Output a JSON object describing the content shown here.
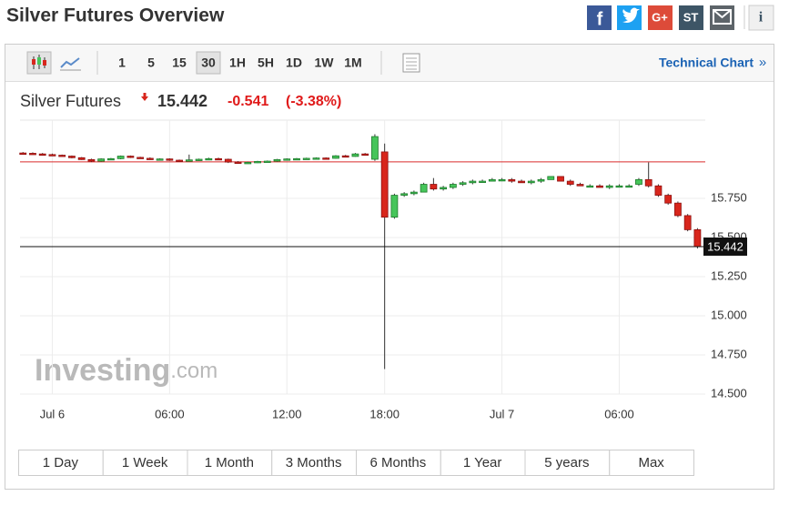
{
  "header": {
    "title": "Silver Futures Overview",
    "share_labels": [
      "f",
      "G+",
      "ST",
      "i"
    ]
  },
  "toolbar": {
    "intervals": [
      "1",
      "5",
      "15",
      "30",
      "1H",
      "5H",
      "1D",
      "1W",
      "1M"
    ],
    "active_interval": 3,
    "link": "Technical Chart",
    "link_arrow": "»"
  },
  "quote": {
    "name": "Silver Futures",
    "price": "15.442",
    "change": "-0.541",
    "change_pct": "(-3.38%)"
  },
  "watermark": {
    "brand": "Investing",
    "suffix": ".com"
  },
  "ranges": [
    "1 Day",
    "1 Week",
    "1 Month",
    "3 Months",
    "6 Months",
    "1 Year",
    "5 years",
    "Max"
  ],
  "chart_data": {
    "type": "candlestick",
    "x": [
      0,
      1,
      2,
      3,
      4,
      5,
      6,
      7,
      8,
      9,
      10,
      11,
      12,
      13,
      14,
      15,
      16,
      17,
      18,
      19,
      20,
      21,
      22,
      23,
      24,
      25,
      26,
      27,
      28,
      29,
      30,
      31,
      32,
      33,
      34,
      35,
      36,
      37,
      38,
      39,
      40,
      41,
      42,
      43,
      44,
      45,
      46,
      47,
      48,
      49,
      50,
      51,
      52,
      53,
      54,
      55,
      56,
      57,
      58,
      59,
      60,
      61,
      62,
      63,
      64,
      65,
      66,
      67,
      68,
      69
    ],
    "open": [
      16.04,
      16.038,
      16.034,
      16.03,
      16.026,
      16.02,
      16.01,
      15.998,
      15.988,
      16.002,
      16.004,
      16.02,
      16.012,
      16.006,
      16.0,
      16.002,
      15.994,
      15.99,
      15.996,
      16.0,
      16.004,
      16.0,
      15.982,
      15.978,
      15.98,
      15.986,
      15.988,
      15.998,
      16.002,
      16.004,
      16.006,
      16.008,
      16.006,
      16.022,
      16.018,
      16.034,
      16.0,
      16.047,
      15.63,
      15.77,
      15.78,
      15.79,
      15.84,
      15.81,
      15.82,
      15.84,
      15.85,
      15.86,
      15.86,
      15.87,
      15.87,
      15.86,
      15.85,
      15.86,
      15.87,
      15.89,
      15.86,
      15.84,
      15.83,
      15.83,
      15.82,
      15.83,
      15.83,
      15.84,
      15.87,
      15.83,
      15.77,
      15.72,
      15.64,
      15.55
    ],
    "high": [
      16.046,
      16.044,
      16.04,
      16.036,
      16.03,
      16.024,
      16.014,
      16.004,
      16.006,
      16.008,
      16.024,
      16.024,
      16.016,
      16.012,
      16.006,
      16.006,
      15.998,
      16.03,
      16.004,
      16.01,
      16.01,
      16.004,
      15.988,
      15.984,
      15.99,
      15.992,
      16.002,
      16.006,
      16.008,
      16.01,
      16.012,
      16.012,
      16.026,
      16.028,
      16.04,
      16.04,
      16.16,
      16.1,
      15.78,
      15.79,
      15.8,
      15.85,
      15.88,
      15.83,
      15.85,
      15.86,
      15.87,
      15.87,
      15.88,
      15.88,
      15.88,
      15.87,
      15.87,
      15.88,
      15.89,
      15.89,
      15.87,
      15.85,
      15.84,
      15.84,
      15.84,
      15.84,
      15.84,
      15.88,
      15.98,
      15.84,
      15.78,
      15.73,
      15.65,
      15.56
    ],
    "low": [
      16.034,
      16.03,
      16.028,
      16.024,
      16.018,
      16.006,
      15.996,
      15.982,
      15.984,
      15.996,
      16.0,
      16.008,
      16.004,
      15.996,
      15.994,
      15.99,
      15.986,
      15.986,
      15.99,
      15.994,
      15.998,
      15.976,
      15.974,
      15.972,
      15.976,
      15.98,
      15.984,
      15.994,
      15.998,
      16.0,
      16.002,
      16.0,
      16.004,
      16.014,
      16.016,
      16.028,
      15.99,
      14.66,
      15.62,
      15.76,
      15.77,
      15.79,
      15.8,
      15.8,
      15.81,
      15.83,
      15.84,
      15.85,
      15.86,
      15.86,
      15.85,
      15.85,
      15.84,
      15.85,
      15.87,
      15.86,
      15.83,
      15.83,
      15.82,
      15.82,
      15.81,
      15.82,
      15.82,
      15.83,
      15.82,
      15.76,
      15.71,
      15.63,
      15.54,
      15.43
    ],
    "close": [
      16.038,
      16.034,
      16.03,
      16.026,
      16.02,
      16.01,
      15.998,
      15.988,
      16.002,
      16.004,
      16.02,
      16.012,
      16.006,
      16.0,
      16.002,
      15.994,
      15.99,
      15.996,
      16.0,
      16.004,
      16.0,
      15.982,
      15.978,
      15.98,
      15.986,
      15.988,
      15.998,
      16.002,
      16.004,
      16.006,
      16.008,
      16.006,
      16.022,
      16.018,
      16.034,
      16.032,
      16.145,
      15.63,
      15.77,
      15.78,
      15.79,
      15.84,
      15.81,
      15.82,
      15.84,
      15.85,
      15.86,
      15.86,
      15.87,
      15.87,
      15.86,
      15.85,
      15.86,
      15.87,
      15.89,
      15.86,
      15.84,
      15.83,
      15.83,
      15.82,
      15.83,
      15.83,
      15.83,
      15.87,
      15.83,
      15.77,
      15.72,
      15.64,
      15.55,
      15.442
    ],
    "up_color": "#46c55a",
    "down_color": "#d8261c",
    "last_value": 15.442,
    "reference_line": 15.983,
    "reference_color": "#d92b2b",
    "xlim": [
      -0.3,
      69.8
    ],
    "xticks": [
      {
        "value": 3,
        "label": "Jul 6"
      },
      {
        "value": 15,
        "label": "06:00"
      },
      {
        "value": 27,
        "label": "12:00"
      },
      {
        "value": 37,
        "label": "18:00"
      },
      {
        "value": 49,
        "label": "Jul 7"
      },
      {
        "value": 61,
        "label": "06:00"
      }
    ],
    "ylim": [
      14.5,
      16.25
    ],
    "yticks": [
      {
        "value": 14.5,
        "label": "14.500"
      },
      {
        "value": 14.75,
        "label": "14.750"
      },
      {
        "value": 15,
        "label": "15.000"
      },
      {
        "value": 15.25,
        "label": "15.250"
      },
      {
        "value": 15.5,
        "label": "15.500"
      },
      {
        "value": 15.75,
        "label": "15.750"
      }
    ],
    "grid": true
  }
}
